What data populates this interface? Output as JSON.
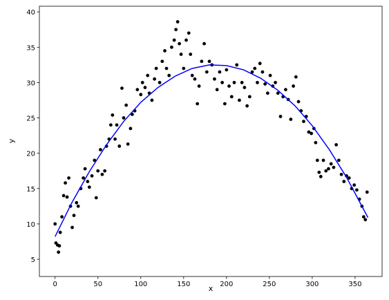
{
  "chart_data": {
    "type": "scatter",
    "xlabel": "x",
    "ylabel": "y",
    "xlim": [
      -18.3,
      381.5
    ],
    "ylim": [
      2.56,
      40.8
    ],
    "xticks": [
      0,
      50,
      100,
      150,
      200,
      250,
      300,
      350
    ],
    "yticks": [
      5,
      10,
      15,
      20,
      25,
      30,
      35,
      40
    ],
    "series": [
      {
        "type": "scatter",
        "color": "#000000",
        "x": [
          0,
          1,
          3,
          4,
          5,
          6,
          8,
          10,
          12,
          14,
          16,
          18,
          20,
          22,
          25,
          27,
          30,
          33,
          35,
          38,
          40,
          43,
          46,
          48,
          50,
          53,
          55,
          58,
          60,
          63,
          65,
          67,
          70,
          72,
          75,
          78,
          80,
          83,
          85,
          88,
          90,
          93,
          96,
          100,
          102,
          105,
          108,
          110,
          113,
          116,
          118,
          122,
          125,
          128,
          130,
          133,
          136,
          139,
          141,
          143,
          145,
          147,
          150,
          153,
          156,
          158,
          160,
          163,
          166,
          168,
          171,
          174,
          177,
          180,
          183,
          186,
          189,
          192,
          195,
          198,
          200,
          203,
          206,
          209,
          212,
          215,
          218,
          221,
          224,
          227,
          230,
          233,
          236,
          239,
          242,
          245,
          248,
          251,
          254,
          257,
          260,
          263,
          266,
          269,
          272,
          275,
          278,
          281,
          284,
          287,
          290,
          293,
          296,
          299,
          302,
          304,
          306,
          308,
          310,
          313,
          316,
          319,
          322,
          325,
          328,
          331,
          334,
          337,
          340,
          343,
          346,
          349,
          352,
          355,
          358,
          360,
          362,
          364
        ],
        "values": [
          10,
          7.3,
          7,
          6,
          6.9,
          8.8,
          11,
          14,
          15.8,
          13.8,
          16.5,
          12.5,
          9.5,
          11.2,
          13,
          12.5,
          15,
          16.5,
          17.8,
          16,
          15.2,
          16.8,
          19,
          13.7,
          17.5,
          20.5,
          17,
          17.5,
          21,
          22,
          24,
          25.4,
          22,
          24,
          21,
          29.2,
          25,
          26.8,
          21.3,
          23.5,
          25.5,
          26,
          29,
          28.3,
          30,
          29.3,
          31,
          28.5,
          27.5,
          30.5,
          32,
          30,
          33,
          34.5,
          32,
          31,
          35,
          36,
          37.5,
          38.6,
          35.5,
          34,
          32,
          36,
          37,
          34,
          31,
          30.5,
          27,
          29.5,
          33,
          35.5,
          31.5,
          33,
          32.5,
          30.5,
          29,
          31.5,
          30,
          27,
          31.8,
          29.5,
          28,
          30,
          32.5,
          27.5,
          30,
          29.3,
          26.7,
          28,
          31.5,
          32,
          30,
          32.7,
          31.5,
          29.8,
          28.5,
          31,
          29.5,
          30,
          28.5,
          25.2,
          28,
          29,
          27.6,
          24.8,
          29.5,
          30.8,
          27.3,
          26,
          24.5,
          25.2,
          23,
          22.8,
          23.5,
          21.5,
          19,
          17.3,
          16.7,
          19,
          17.5,
          17.8,
          18.5,
          18,
          21.2,
          19,
          17,
          16,
          16.8,
          16.5,
          15,
          15.5,
          14.8,
          13.5,
          12.5,
          11,
          10.6,
          14.5
        ]
      },
      {
        "type": "line",
        "color": "#0000ff",
        "x": [
          0,
          20,
          40,
          60,
          80,
          100,
          120,
          140,
          160,
          180,
          200,
          220,
          240,
          260,
          280,
          300,
          320,
          340,
          365
        ],
        "values": [
          8.2,
          13.1,
          17.4,
          21.2,
          24.5,
          27.2,
          29.3,
          30.9,
          32.0,
          32.5,
          32.4,
          31.8,
          30.6,
          28.9,
          26.7,
          23.9,
          20.5,
          16.6,
          10.9
        ]
      }
    ]
  }
}
